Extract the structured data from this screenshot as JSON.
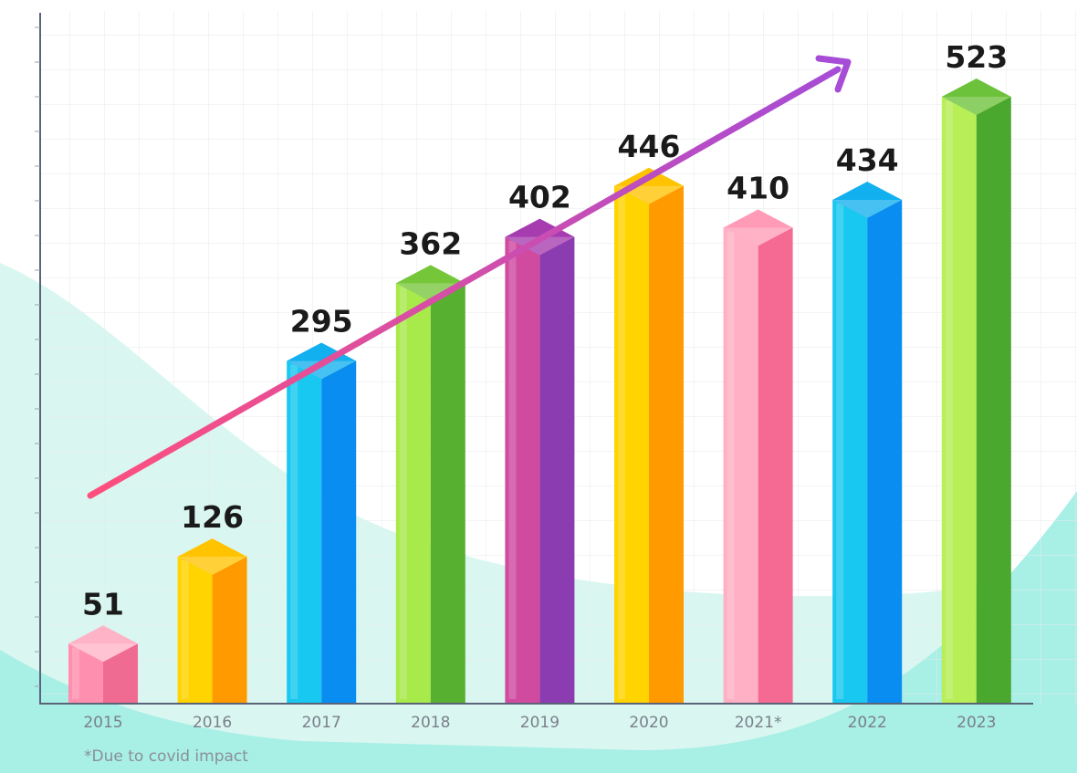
{
  "chart_data": {
    "type": "bar",
    "categories": [
      "2015",
      "2016",
      "2017",
      "2018",
      "2019",
      "2020",
      "2021*",
      "2022",
      "2023"
    ],
    "values": [
      51,
      126,
      295,
      362,
      402,
      446,
      410,
      434,
      523
    ],
    "title": "",
    "xlabel": "",
    "ylabel": "",
    "ylim": [
      0,
      560
    ],
    "grid": true,
    "legend": "none",
    "trend_arrow": true,
    "footnote": "*Due to covid impact",
    "bar_colors": [
      {
        "front": "#ff8fae",
        "side": "#f06b92",
        "top": "#ffb3c7"
      },
      {
        "front": "#ffd400",
        "side": "#ff9a00",
        "top": "#ffc300"
      },
      {
        "front": "#18c8f0",
        "side": "#0a8df0",
        "top": "#12b0ee"
      },
      {
        "front": "#a8ea4a",
        "side": "#58b030",
        "top": "#76c63a"
      },
      {
        "front": "#d04aa0",
        "side": "#8a3cb0",
        "top": "#a63cb0"
      },
      {
        "front": "#ffd400",
        "side": "#ff9a00",
        "top": "#ffc300"
      },
      {
        "front": "#ffb0c4",
        "side": "#f46a92",
        "top": "#ff9bb6"
      },
      {
        "front": "#18c8f0",
        "side": "#0a8df0",
        "top": "#12b0ee"
      },
      {
        "front": "#b8ee56",
        "side": "#4aa82e",
        "top": "#6cc23a"
      }
    ],
    "arrow_colors": [
      "#ff4f7d",
      "#a64cd6"
    ],
    "background_colors": [
      "#d9f7f0",
      "#a8efe6",
      "#b6f1ea"
    ]
  }
}
